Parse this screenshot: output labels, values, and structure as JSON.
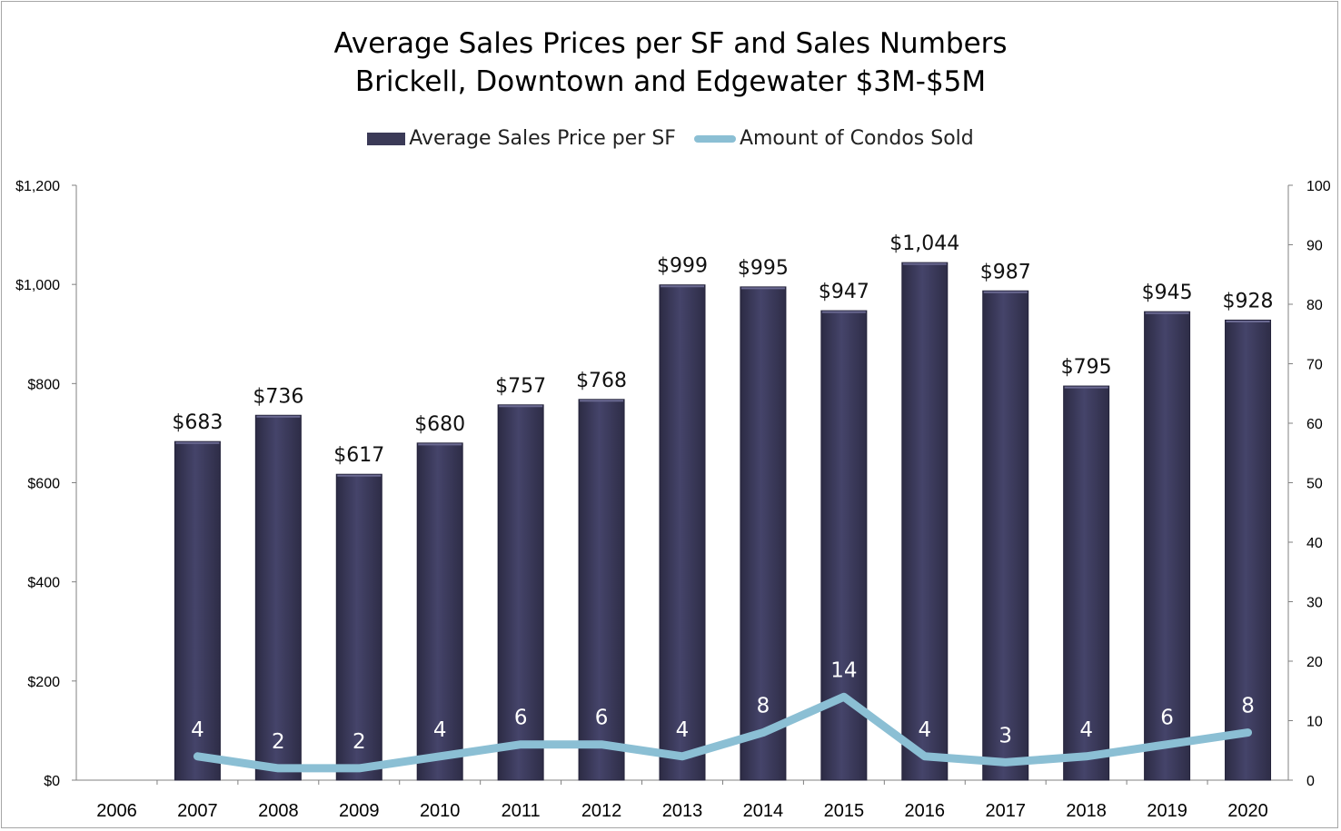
{
  "chart_data": {
    "type": "bar",
    "title": "Average Sales Prices per SF and Sales Numbers",
    "subtitle": "Brickell, Downtown and Edgewater $3M-$5M",
    "categories": [
      "2006",
      "2007",
      "2008",
      "2009",
      "2010",
      "2011",
      "2012",
      "2013",
      "2014",
      "2015",
      "2016",
      "2017",
      "2018",
      "2019",
      "2020"
    ],
    "series": [
      {
        "name": "Average Sales Price per SF",
        "type": "bar",
        "axis": "left",
        "values": [
          null,
          683,
          736,
          617,
          680,
          757,
          768,
          999,
          995,
          947,
          1044,
          987,
          795,
          945,
          928
        ],
        "labels": [
          "",
          "$683",
          "$736",
          "$617",
          "$680",
          "$757",
          "$768",
          "$999",
          "$995",
          "$947",
          "$1,044",
          "$987",
          "$795",
          "$945",
          "$928"
        ],
        "color": "#3b3a57"
      },
      {
        "name": "Amount of Condos Sold",
        "type": "line",
        "axis": "right",
        "values": [
          null,
          4,
          2,
          2,
          4,
          6,
          6,
          4,
          8,
          14,
          4,
          3,
          4,
          6,
          8
        ],
        "labels": [
          "",
          "4",
          "2",
          "2",
          "4",
          "6",
          "6",
          "4",
          "8",
          "14",
          "4",
          "3",
          "4",
          "6",
          "8"
        ],
        "color": "#8bbfd4"
      }
    ],
    "y_left": {
      "min": 0,
      "max": 1200,
      "ticks": [
        0,
        200,
        400,
        600,
        800,
        1000,
        1200
      ],
      "tick_labels": [
        "$0",
        "$200",
        "$400",
        "$600",
        "$800",
        "$1,000",
        "$1,200"
      ]
    },
    "y_right": {
      "min": 0,
      "max": 100,
      "ticks": [
        0,
        10,
        20,
        30,
        40,
        50,
        60,
        70,
        80,
        90,
        100
      ],
      "tick_labels": [
        "0",
        "10",
        "20",
        "30",
        "40",
        "50",
        "60",
        "70",
        "80",
        "90",
        "100"
      ]
    },
    "grid": false,
    "legend_position": "top"
  }
}
